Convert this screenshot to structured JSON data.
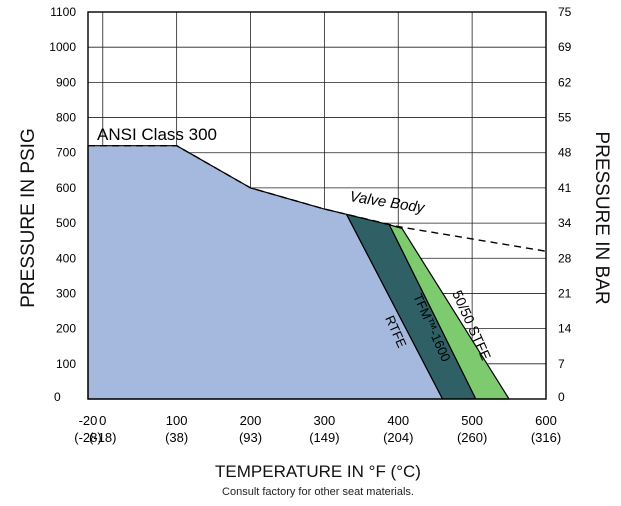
{
  "chart_data": {
    "type": "area",
    "title": "",
    "xlabel": "TEMPERATURE IN °F (°C)",
    "ylabel_left": "PRESSURE IN PSIG",
    "ylabel_right": "PRESSURE IN BAR",
    "footnote": "Consult factory for other seat materials.",
    "xlim": [
      -20,
      600
    ],
    "ylim": [
      0,
      1100
    ],
    "grid": true,
    "x_ticks": [
      {
        "value": -20,
        "label": "-20",
        "sublabel": "(-28)"
      },
      {
        "value": 0,
        "label": "0",
        "sublabel": "(-18)"
      },
      {
        "value": 100,
        "label": "100",
        "sublabel": "(38)"
      },
      {
        "value": 200,
        "label": "200",
        "sublabel": "(93)"
      },
      {
        "value": 300,
        "label": "300",
        "sublabel": "(149)"
      },
      {
        "value": 400,
        "label": "400",
        "sublabel": "(204)"
      },
      {
        "value": 500,
        "label": "500",
        "sublabel": "(260)"
      },
      {
        "value": 600,
        "label": "600",
        "sublabel": "(316)"
      }
    ],
    "y_ticks_left": [
      {
        "value": 0,
        "label": "0"
      },
      {
        "value": 100,
        "label": "100"
      },
      {
        "value": 200,
        "label": "200"
      },
      {
        "value": 300,
        "label": "300"
      },
      {
        "value": 400,
        "label": "400"
      },
      {
        "value": 500,
        "label": "500"
      },
      {
        "value": 600,
        "label": "600"
      },
      {
        "value": 700,
        "label": "700"
      },
      {
        "value": 800,
        "label": "800"
      },
      {
        "value": 900,
        "label": "900"
      },
      {
        "value": 1000,
        "label": "1000"
      },
      {
        "value": 1100,
        "label": "1100"
      }
    ],
    "y_ticks_right": [
      {
        "value": 0,
        "label": "0"
      },
      {
        "value": 100,
        "label": "7"
      },
      {
        "value": 200,
        "label": "14"
      },
      {
        "value": 300,
        "label": "21"
      },
      {
        "value": 400,
        "label": "28"
      },
      {
        "value": 500,
        "label": "34"
      },
      {
        "value": 600,
        "label": "41"
      },
      {
        "value": 700,
        "label": "48"
      },
      {
        "value": 800,
        "label": "55"
      },
      {
        "value": 900,
        "label": "62"
      },
      {
        "value": 1000,
        "label": "69"
      },
      {
        "value": 1100,
        "label": "75"
      }
    ],
    "ansi_class_300": {
      "label": "ANSI Class 300",
      "points": [
        [
          -20,
          720
        ],
        [
          100,
          720
        ],
        [
          200,
          600
        ],
        [
          300,
          540
        ],
        [
          400,
          490
        ],
        [
          600,
          420
        ]
      ]
    },
    "series": [
      {
        "name": "RTFE",
        "color": "#a4b9dd",
        "points": [
          [
            -20,
            720
          ],
          [
            100,
            720
          ],
          [
            200,
            600
          ],
          [
            300,
            540
          ],
          [
            330,
            525
          ],
          [
            460,
            0
          ],
          [
            -20,
            0
          ]
        ]
      },
      {
        "name": "TFM™-1600",
        "color": "#2e6066",
        "points": [
          [
            330,
            525
          ],
          [
            388,
            495
          ],
          [
            505,
            0
          ],
          [
            460,
            0
          ]
        ]
      },
      {
        "name": "50/50 STFE",
        "color": "#7dcb6e",
        "points": [
          [
            388,
            495
          ],
          [
            405,
            485
          ],
          [
            550,
            0
          ],
          [
            505,
            0
          ]
        ]
      }
    ],
    "annotations": [
      {
        "text": "Valve Body"
      },
      {
        "text": "ANSI Class 300"
      },
      {
        "text": "RTFE"
      },
      {
        "text": "TFM™-1600"
      },
      {
        "text": "50/50 STFE"
      }
    ]
  }
}
